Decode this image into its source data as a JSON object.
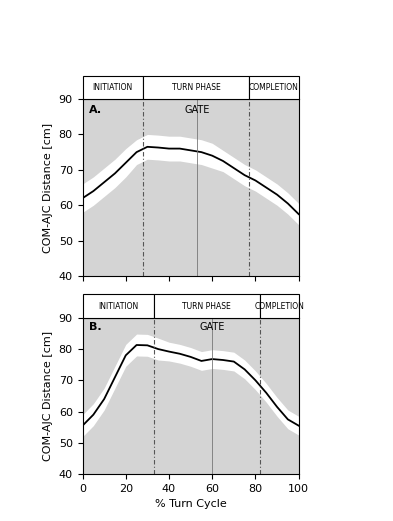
{
  "chart_data": [
    {
      "type": "line",
      "title": "A.",
      "x_label": "% Turn Cycle",
      "y_label": "COM-AJC Distance [cm]",
      "x": [
        0,
        5,
        10,
        15,
        20,
        25,
        30,
        35,
        40,
        45,
        50,
        55,
        60,
        65,
        70,
        75,
        80,
        85,
        90,
        95,
        100
      ],
      "series": [
        {
          "name": "COM-AJC Distance",
          "color": "#000000",
          "values": [
            62,
            64,
            66.5,
            69,
            72,
            75,
            76.5,
            76.3,
            76,
            76,
            75.5,
            75,
            74,
            72.5,
            70.5,
            68.5,
            67,
            65,
            63,
            60.5,
            57.5
          ],
          "sd": [
            4,
            4,
            4,
            4,
            4,
            3.5,
            3.5,
            3.5,
            3.5,
            3.5,
            3.5,
            3.5,
            3.5,
            3,
            3,
            3,
            3,
            3,
            3,
            3,
            3
          ]
        }
      ],
      "phases": [
        {
          "label": "INITIATION",
          "start": 0,
          "end": 28
        },
        {
          "label": "TURN PHASE",
          "start": 28,
          "end": 77
        },
        {
          "label": "COMPLETION",
          "start": 77,
          "end": 100
        }
      ],
      "gate": {
        "label": "GATE",
        "x": 53
      },
      "xlim": [
        0,
        100
      ],
      "xticks": [
        0,
        20,
        40,
        60,
        80,
        100
      ],
      "ylim": [
        40,
        90
      ],
      "yticks": [
        40,
        50,
        60,
        70,
        80,
        90
      ],
      "tick_labels": "y",
      "grid": false
    },
    {
      "type": "line",
      "title": "B.",
      "x_label": "% Turn Cycle",
      "y_label": "COM-AJC Distance [cm]",
      "x": [
        0,
        5,
        10,
        15,
        20,
        25,
        30,
        35,
        40,
        45,
        50,
        55,
        60,
        65,
        70,
        75,
        80,
        85,
        90,
        95,
        100
      ],
      "series": [
        {
          "name": "COM-AJC Distance",
          "color": "#000000",
          "values": [
            55.5,
            59,
            64,
            71,
            78,
            81.3,
            81.2,
            80,
            79.2,
            78.5,
            77.5,
            76.2,
            76.8,
            76.5,
            76,
            73.5,
            70,
            66,
            61.5,
            57.5,
            55.5
          ],
          "sd": [
            3.5,
            3.5,
            3.5,
            3.5,
            3.5,
            3.5,
            3.5,
            3.5,
            3,
            3,
            3,
            3,
            3,
            3,
            3,
            3,
            3,
            3,
            3,
            3,
            3
          ]
        }
      ],
      "phases": [
        {
          "label": "INITIATION",
          "start": 0,
          "end": 33
        },
        {
          "label": "TURN PHASE",
          "start": 33,
          "end": 82
        },
        {
          "label": "COMPLETION",
          "start": 82,
          "end": 100
        }
      ],
      "gate": {
        "label": "GATE",
        "x": 60
      },
      "xlim": [
        0,
        100
      ],
      "xticks": [
        0,
        20,
        40,
        60,
        80,
        100
      ],
      "ylim": [
        40,
        90
      ],
      "yticks": [
        40,
        50,
        60,
        70,
        80,
        90
      ],
      "grid": false
    }
  ]
}
